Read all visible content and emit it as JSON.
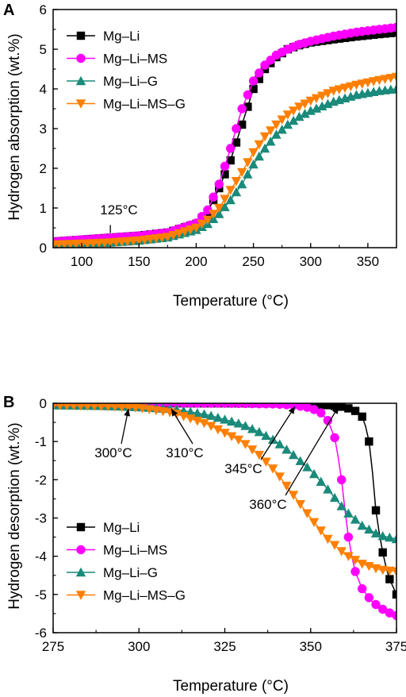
{
  "chart_data": [
    {
      "panel": "A",
      "type": "line",
      "title": "",
      "xlabel": "Temperature (°C)",
      "ylabel": "Hydrogen absorption (wt.%)",
      "xlim": [
        75,
        375
      ],
      "ylim": [
        0,
        6
      ],
      "xticks": [
        100,
        150,
        200,
        250,
        300,
        350
      ],
      "yticks": [
        0,
        1,
        2,
        3,
        4,
        5,
        6
      ],
      "grid": false,
      "legend_position": "top-left",
      "series": [
        {
          "name": "Mg–Li",
          "color": "#000000",
          "marker": "square",
          "x": [
            75,
            100,
            125,
            150,
            175,
            200,
            210,
            220,
            230,
            240,
            250,
            260,
            270,
            280,
            290,
            300,
            320,
            340,
            360,
            375
          ],
          "y": [
            0.15,
            0.2,
            0.25,
            0.3,
            0.38,
            0.6,
            0.9,
            1.5,
            2.2,
            3.1,
            4.0,
            4.5,
            4.8,
            5.0,
            5.1,
            5.17,
            5.25,
            5.32,
            5.38,
            5.42
          ]
        },
        {
          "name": "Mg–Li–MS",
          "color": "#ff00ff",
          "marker": "circle",
          "x": [
            75,
            100,
            125,
            150,
            175,
            200,
            210,
            220,
            230,
            240,
            250,
            260,
            270,
            280,
            290,
            300,
            320,
            340,
            360,
            375
          ],
          "y": [
            0.15,
            0.2,
            0.25,
            0.3,
            0.38,
            0.62,
            0.95,
            1.6,
            2.5,
            3.5,
            4.2,
            4.6,
            4.85,
            5.0,
            5.12,
            5.2,
            5.33,
            5.43,
            5.5,
            5.55
          ]
        },
        {
          "name": "Mg–Li–G",
          "color": "#1a8a7a",
          "marker": "triangle-up",
          "x": [
            75,
            100,
            125,
            150,
            175,
            200,
            210,
            220,
            230,
            240,
            250,
            260,
            270,
            280,
            290,
            300,
            320,
            340,
            360,
            375
          ],
          "y": [
            0.08,
            0.1,
            0.13,
            0.18,
            0.26,
            0.45,
            0.6,
            0.85,
            1.2,
            1.6,
            2.1,
            2.5,
            2.85,
            3.1,
            3.3,
            3.45,
            3.68,
            3.85,
            3.95,
            4.0
          ]
        },
        {
          "name": "Mg–Li–MS–G",
          "color": "#ff7f00",
          "marker": "triangle-down",
          "x": [
            75,
            100,
            125,
            150,
            175,
            200,
            210,
            220,
            230,
            240,
            250,
            260,
            270,
            280,
            290,
            300,
            320,
            340,
            360,
            375
          ],
          "y": [
            0.08,
            0.1,
            0.13,
            0.18,
            0.27,
            0.5,
            0.7,
            1.0,
            1.45,
            1.9,
            2.4,
            2.8,
            3.1,
            3.35,
            3.55,
            3.7,
            3.95,
            4.1,
            4.22,
            4.3
          ]
        }
      ],
      "annotations": [
        {
          "text": "125°C",
          "x": 125,
          "y": 0.25
        }
      ]
    },
    {
      "panel": "B",
      "type": "line",
      "title": "",
      "xlabel": "Temperature (°C)",
      "ylabel": "Hydrogen desorption (wt.%)",
      "xlim": [
        275,
        375
      ],
      "ylim": [
        -6,
        0
      ],
      "xticks": [
        275,
        300,
        325,
        350,
        375
      ],
      "yticks": [
        0,
        -1,
        -2,
        -3,
        -4,
        -5,
        -6
      ],
      "grid": false,
      "legend_position": "bottom-left",
      "series": [
        {
          "name": "Mg–Li",
          "color": "#000000",
          "marker": "square",
          "x": [
            275,
            300,
            325,
            340,
            350,
            355,
            360,
            363,
            365,
            366,
            367,
            368,
            369,
            370,
            371,
            372,
            373,
            374,
            375
          ],
          "y": [
            0,
            0,
            0,
            0,
            -0.02,
            -0.05,
            -0.1,
            -0.2,
            -0.35,
            -0.6,
            -1.0,
            -1.8,
            -2.8,
            -3.4,
            -3.9,
            -4.3,
            -4.6,
            -4.8,
            -5.0
          ]
        },
        {
          "name": "Mg–Li–MS",
          "color": "#ff00ff",
          "marker": "circle",
          "x": [
            275,
            300,
            325,
            340,
            345,
            350,
            353,
            355,
            357,
            358,
            359,
            360,
            361,
            362,
            363,
            365,
            368,
            372,
            375
          ],
          "y": [
            0,
            0,
            0,
            -0.02,
            -0.05,
            -0.12,
            -0.25,
            -0.45,
            -0.9,
            -1.4,
            -2.0,
            -2.8,
            -3.5,
            -4.0,
            -4.4,
            -4.85,
            -5.2,
            -5.45,
            -5.55
          ]
        },
        {
          "name": "Mg–Li–G",
          "color": "#1a8a7a",
          "marker": "triangle-up",
          "x": [
            275,
            290,
            300,
            310,
            320,
            330,
            335,
            340,
            345,
            350,
            355,
            360,
            365,
            370,
            375
          ],
          "y": [
            -0.05,
            -0.07,
            -0.1,
            -0.15,
            -0.3,
            -0.55,
            -0.75,
            -1.0,
            -1.35,
            -1.75,
            -2.25,
            -2.8,
            -3.2,
            -3.45,
            -3.55
          ]
        },
        {
          "name": "Mg–Li–MS–G",
          "color": "#ff7f00",
          "marker": "triangle-down",
          "x": [
            275,
            290,
            300,
            310,
            320,
            330,
            335,
            340,
            345,
            350,
            355,
            360,
            365,
            370,
            375
          ],
          "y": [
            -0.05,
            -0.08,
            -0.12,
            -0.25,
            -0.55,
            -1.0,
            -1.35,
            -1.8,
            -2.4,
            -3.0,
            -3.55,
            -3.95,
            -4.2,
            -4.35,
            -4.4
          ]
        }
      ],
      "annotations": [
        {
          "text": "300°C",
          "x": 300,
          "y": -0.12
        },
        {
          "text": "310°C",
          "x": 310,
          "y": -0.15
        },
        {
          "text": "345°C",
          "x": 345,
          "y": -0.05
        },
        {
          "text": "360°C",
          "x": 360,
          "y": -0.1
        }
      ]
    }
  ]
}
